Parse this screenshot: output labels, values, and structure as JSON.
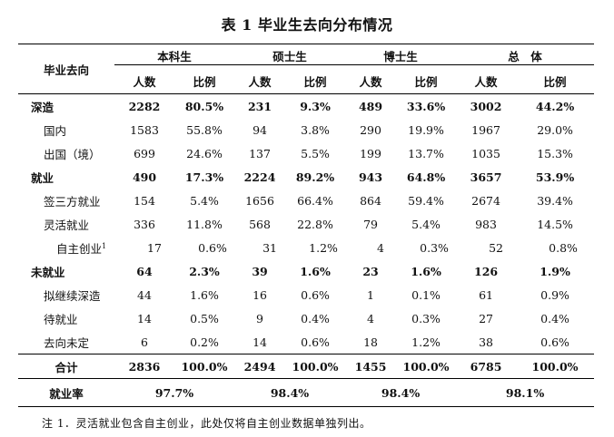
{
  "fragment_top": "",
  "title": "表 1 毕业生去向分布情况",
  "header": {
    "row_label": "毕业去向",
    "groups": [
      "本科生",
      "硕士生",
      "博士生",
      "总　体"
    ],
    "sub": [
      "人数",
      "比例"
    ]
  },
  "rows": [
    {
      "label": "深造",
      "cells": [
        "2282",
        "80.5%",
        "231",
        "9.3%",
        "489",
        "33.6%",
        "3002",
        "44.2%"
      ]
    },
    {
      "label": "国内",
      "cells": [
        "1583",
        "55.8%",
        "94",
        "3.8%",
        "290",
        "19.9%",
        "1967",
        "29.0%"
      ]
    },
    {
      "label": "出国（境）",
      "cells": [
        "699",
        "24.6%",
        "137",
        "5.5%",
        "199",
        "13.7%",
        "1035",
        "15.3%"
      ]
    },
    {
      "label": "就业",
      "cells": [
        "490",
        "17.3%",
        "2224",
        "89.2%",
        "943",
        "64.8%",
        "3657",
        "53.9%"
      ]
    },
    {
      "label": "签三方就业",
      "cells": [
        "154",
        "5.4%",
        "1656",
        "66.4%",
        "864",
        "59.4%",
        "2674",
        "39.4%"
      ]
    },
    {
      "label": "灵活就业",
      "cells": [
        "336",
        "11.8%",
        "568",
        "22.8%",
        "79",
        "5.4%",
        "983",
        "14.5%"
      ]
    },
    {
      "label": "自主创业",
      "sup": "1",
      "cells": [
        "17",
        "0.6%",
        "31",
        "1.2%",
        "4",
        "0.3%",
        "52",
        "0.8%"
      ]
    },
    {
      "label": "未就业",
      "cells": [
        "64",
        "2.3%",
        "39",
        "1.6%",
        "23",
        "1.6%",
        "126",
        "1.9%"
      ]
    },
    {
      "label": "拟继续深造",
      "cells": [
        "44",
        "1.6%",
        "16",
        "0.6%",
        "1",
        "0.1%",
        "61",
        "0.9%"
      ]
    },
    {
      "label": "待就业",
      "cells": [
        "14",
        "0.5%",
        "9",
        "0.4%",
        "4",
        "0.3%",
        "27",
        "0.4%"
      ]
    },
    {
      "label": "去向未定",
      "cells": [
        "6",
        "0.2%",
        "14",
        "0.6%",
        "18",
        "1.2%",
        "38",
        "0.6%"
      ]
    }
  ],
  "total": {
    "label": "合计",
    "cells": [
      "2836",
      "100.0%",
      "2494",
      "100.0%",
      "1455",
      "100.0%",
      "6785",
      "100.0%"
    ]
  },
  "rate": {
    "label": "就业率",
    "cells": [
      "97.7%",
      "98.4%",
      "98.4%",
      "98.1%"
    ]
  },
  "note": "注 1．灵活就业包含自主创业，此处仅将自主创业数据单独列出。"
}
